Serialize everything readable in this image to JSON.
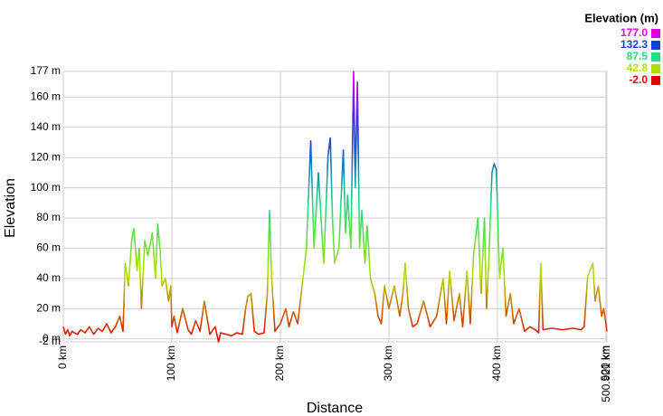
{
  "chart_data": {
    "type": "line",
    "x_label": "Distance",
    "y_label": "Elevation",
    "xlim": [
      0,
      500.921
    ],
    "ylim": [
      -2,
      177
    ],
    "xticks": [
      {
        "value": 0,
        "label": "0 km"
      },
      {
        "value": 100,
        "label": "100 km"
      },
      {
        "value": 200,
        "label": "200 km"
      },
      {
        "value": 300,
        "label": "300 km"
      },
      {
        "value": 400,
        "label": "400 km"
      },
      {
        "value": 500,
        "label": "500 km"
      },
      {
        "value": 500.921,
        "label": "500.921 km"
      }
    ],
    "yticks": [
      {
        "value": -2,
        "label": "-2 m"
      },
      {
        "value": 0,
        "label": "0 m"
      },
      {
        "value": 20,
        "label": "20 m"
      },
      {
        "value": 40,
        "label": "40 m"
      },
      {
        "value": 60,
        "label": "60 m"
      },
      {
        "value": 80,
        "label": "80 m"
      },
      {
        "value": 100,
        "label": "100 m"
      },
      {
        "value": 120,
        "label": "120 m"
      },
      {
        "value": 140,
        "label": "140 m"
      },
      {
        "value": 160,
        "label": "160 m"
      },
      {
        "value": 177,
        "label": "177 m"
      }
    ],
    "grid": true,
    "color_scale": {
      "title": "Elevation (m)",
      "entries": [
        {
          "value": 177,
          "label": "177.0",
          "color": "#e000e0"
        },
        {
          "value": 132.3,
          "label": "132.3",
          "color": "#1040e0"
        },
        {
          "value": 87.5,
          "label": "87.5",
          "color": "#20e080"
        },
        {
          "value": 42.8,
          "label": "42.8",
          "color": "#b0e000"
        },
        {
          "value": -2,
          "label": "-2.0",
          "color": "#e00000"
        }
      ]
    },
    "series": [
      {
        "name": "Elevation",
        "x": [
          0,
          2,
          4,
          6,
          8,
          10,
          13,
          16,
          20,
          24,
          28,
          32,
          36,
          40,
          44,
          48,
          52,
          55,
          57,
          60,
          63,
          65,
          68,
          70,
          72,
          75,
          78,
          82,
          85,
          87,
          89,
          91,
          94,
          97,
          99,
          100,
          102,
          105,
          110,
          115,
          118,
          122,
          126,
          130,
          135,
          140,
          143,
          145,
          150,
          155,
          160,
          165,
          168,
          170,
          173,
          176,
          180,
          185,
          188,
          190,
          192,
          195,
          200,
          205,
          208,
          212,
          216,
          220,
          224,
          228,
          231,
          235,
          240,
          244,
          246,
          248,
          250,
          254,
          258,
          260,
          262,
          265,
          267.5,
          269,
          271,
          273,
          275,
          278,
          280,
          283,
          287,
          290,
          293,
          296,
          300,
          305,
          310,
          313,
          315,
          318,
          322,
          326,
          332,
          338,
          344,
          350,
          353,
          356,
          360,
          365,
          368,
          372,
          375,
          378,
          382,
          385,
          388,
          390,
          392,
          395,
          397,
          399,
          402,
          405,
          408,
          412,
          415,
          420,
          425,
          430,
          435,
          438,
          440,
          442,
          450,
          460,
          470,
          477,
          480,
          483,
          485,
          488,
          490,
          493,
          496,
          498,
          500.921
        ],
        "values": [
          8,
          3,
          6,
          2,
          5,
          4,
          3,
          6,
          4,
          8,
          3,
          7,
          5,
          10,
          4,
          8,
          15,
          5,
          50,
          35,
          65,
          73,
          45,
          60,
          20,
          65,
          55,
          70,
          40,
          76,
          60,
          35,
          40,
          25,
          35,
          8,
          15,
          4,
          20,
          6,
          3,
          12,
          5,
          25,
          3,
          8,
          -2,
          4,
          3,
          2,
          4,
          3,
          20,
          28,
          30,
          5,
          3,
          4,
          30,
          85,
          40,
          5,
          10,
          20,
          8,
          18,
          10,
          35,
          60,
          131,
          60,
          110,
          50,
          122,
          133,
          80,
          50,
          60,
          125,
          70,
          95,
          60,
          177,
          100,
          170,
          60,
          85,
          50,
          75,
          40,
          30,
          15,
          10,
          35,
          20,
          35,
          15,
          30,
          50,
          20,
          8,
          10,
          25,
          8,
          15,
          40,
          10,
          45,
          12,
          30,
          8,
          45,
          10,
          55,
          80,
          30,
          80,
          20,
          50,
          110,
          116,
          112,
          40,
          60,
          15,
          30,
          10,
          20,
          5,
          8,
          6,
          4,
          50,
          6,
          7,
          6,
          7,
          6,
          8,
          40,
          45,
          50,
          25,
          35,
          15,
          20,
          5
        ]
      }
    ]
  }
}
